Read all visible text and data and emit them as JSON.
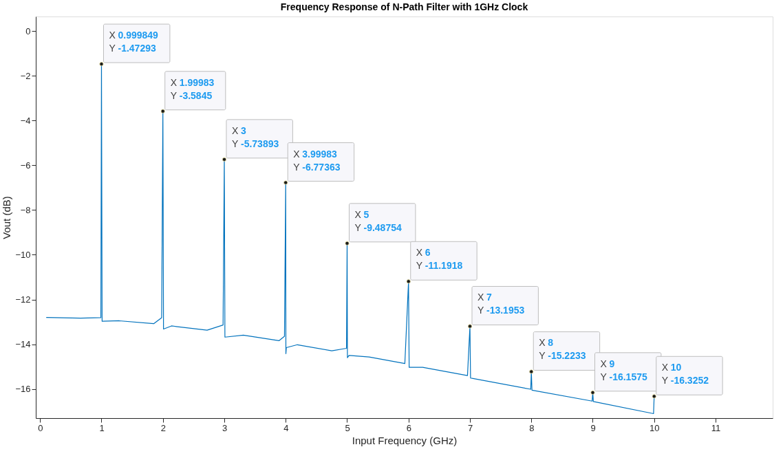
{
  "chart_data": {
    "type": "line",
    "title": "Frequency Response of N-Path Filter with 1GHz Clock",
    "xlabel": "Input Frequency (GHz)",
    "ylabel": "Vout (dB)",
    "xlim": [
      -0.07,
      11.93
    ],
    "ylim": [
      -17.3,
      0.65
    ],
    "xticks": [
      0,
      1,
      2,
      3,
      4,
      5,
      6,
      7,
      8,
      9,
      10,
      11
    ],
    "yticks": [
      0,
      -2,
      -4,
      -6,
      -8,
      -10,
      -12,
      -14,
      -16
    ],
    "grid": false,
    "marker": "none",
    "line_style": "solid",
    "series": [
      {
        "color": "#0072bd",
        "x": [
          0.1,
          0.66,
          0.99,
          0.999849,
          1.01,
          1.29,
          1.85,
          1.98,
          1.99983,
          2.01,
          2.14,
          2.72,
          2.98,
          3,
          3.01,
          3.31,
          3.89,
          3.98,
          3.99983,
          4.003,
          4.01,
          4.19,
          4.75,
          4.99,
          5,
          5.005,
          5.03,
          5.36,
          5.94,
          6,
          6.01,
          6.23,
          6.96,
          7,
          7.01,
          7.05,
          7.99,
          8,
          8.01,
          8.99,
          9,
          9.01,
          9.99,
          10
        ],
        "values": [
          -12.8,
          -12.83,
          -12.81,
          -1.47293,
          -12.97,
          -12.95,
          -13.08,
          -12.81,
          -3.5845,
          -13.32,
          -13.18,
          -13.37,
          -13.14,
          -5.73893,
          -13.68,
          -13.59,
          -13.84,
          -13.64,
          -6.77363,
          -14.42,
          -14.15,
          -14.02,
          -14.29,
          -14.18,
          -9.48754,
          -14.6,
          -14.5,
          -14.57,
          -14.86,
          -11.1918,
          -15.03,
          -15.03,
          -15.4,
          -13.1953,
          -15.51,
          -15.53,
          -16.01,
          -15.2233,
          -16.05,
          -16.54,
          -16.1575,
          -16.56,
          -17.1,
          -16.3252
        ]
      }
    ],
    "annotations": [
      {
        "text": "X 0.999849\nY -1.47293",
        "x": 0.999849,
        "y": -1.47293
      },
      {
        "text": "X 1.99983\nY -3.5845",
        "x": 1.99983,
        "y": -3.5845
      },
      {
        "text": "X 3\nY -5.73893",
        "x": 3,
        "y": -5.73893
      },
      {
        "text": "X 3.99983\nY -6.77363",
        "x": 3.99983,
        "y": -6.77363
      },
      {
        "text": "X 5\nY -9.48754",
        "x": 5,
        "y": -9.48754
      },
      {
        "text": "X 6\nY -11.1918",
        "x": 6,
        "y": -11.1918
      },
      {
        "text": "X 7\nY -13.1953",
        "x": 7,
        "y": -13.1953
      },
      {
        "text": "X 8\nY -15.2233",
        "x": 8,
        "y": -15.2233
      },
      {
        "text": "X 9\nY -16.1575",
        "x": 9,
        "y": -16.1575
      },
      {
        "text": "X 10\nY -16.3252",
        "x": 10,
        "y": -16.3252
      }
    ]
  }
}
